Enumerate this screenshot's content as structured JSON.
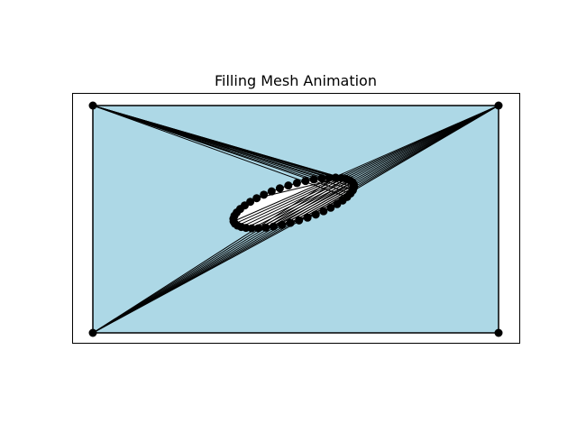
{
  "title": "Filling Mesh Animation",
  "colors": {
    "fill": "#add8e6",
    "hole": "#ffffff",
    "edge": "#000000",
    "node": "#000000",
    "frame": "#000000"
  },
  "mesh": {
    "outer_corners": [
      [
        0,
        0
      ],
      [
        10,
        0
      ],
      [
        10,
        5.6
      ],
      [
        0,
        5.6
      ]
    ],
    "hole": {
      "center": [
        4.95,
        3.2
      ],
      "semi_axis_x": 3.1,
      "semi_axis_y": 0.9,
      "rotation_deg": -17,
      "node_count": 44
    },
    "fan_edges": [
      {
        "corner": 3,
        "from_node": 18,
        "to_node": 30
      },
      {
        "corner": 2,
        "from_node": 0,
        "to_node": 12
      },
      {
        "corner": 0,
        "from_node": 19,
        "to_node": 27
      }
    ],
    "interior_edge": [
      26,
      37
    ]
  }
}
